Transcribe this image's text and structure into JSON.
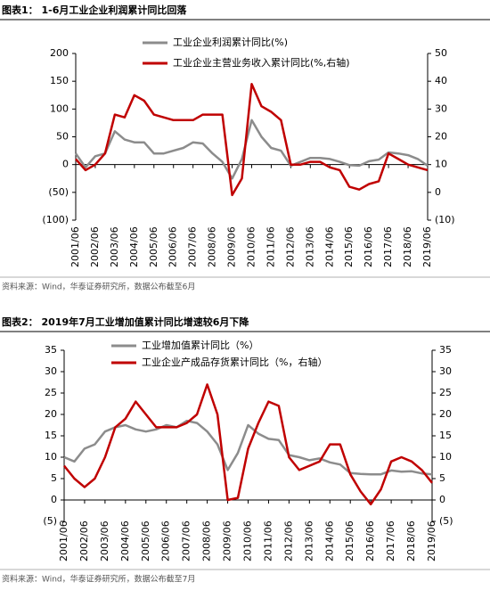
{
  "chart_data": [
    {
      "type": "line",
      "title": "图表1：  1-6月工业企业利润累计同比回落",
      "source": "资料来源：Wind，华泰证券研究所，数据公布截至6月",
      "x": [
        "2001/06",
        "2001/12",
        "2002/06",
        "2002/12",
        "2003/06",
        "2003/12",
        "2004/06",
        "2004/12",
        "2005/06",
        "2005/12",
        "2006/06",
        "2006/12",
        "2007/06",
        "2007/12",
        "2008/06",
        "2008/12",
        "2009/06",
        "2009/12",
        "2010/06",
        "2010/12",
        "2011/06",
        "2011/12",
        "2012/06",
        "2012/12",
        "2013/06",
        "2013/12",
        "2014/06",
        "2014/12",
        "2015/06",
        "2015/12",
        "2016/06",
        "2016/12",
        "2017/06",
        "2017/12",
        "2018/06",
        "2018/12",
        "2019/06"
      ],
      "xticks": [
        "2001/06",
        "2002/06",
        "2003/06",
        "2004/06",
        "2005/06",
        "2006/06",
        "2007/06",
        "2008/06",
        "2009/06",
        "2010/06",
        "2011/06",
        "2012/06",
        "2013/06",
        "2014/06",
        "2015/06",
        "2016/06",
        "2017/06",
        "2018/06",
        "2019/06"
      ],
      "ylim": [
        -100,
        200
      ],
      "yticks": [
        200,
        150,
        100,
        50,
        0,
        {
          "value": -50,
          "label": "(50)"
        },
        {
          "value": -100,
          "label": "(100)"
        }
      ],
      "y2lim": [
        -10,
        50
      ],
      "y2ticks": [
        50,
        40,
        30,
        20,
        10,
        0,
        {
          "value": -10,
          "label": "(10)"
        }
      ],
      "series": [
        {
          "name": "工业企业利润累计同比(%)",
          "color": "#8c8c8c",
          "values": [
            20,
            -5,
            15,
            20,
            60,
            45,
            40,
            40,
            20,
            20,
            25,
            30,
            40,
            38,
            20,
            5,
            -25,
            10,
            80,
            50,
            30,
            25,
            -2,
            5,
            12,
            12,
            10,
            5,
            -1,
            -2,
            6,
            9,
            22,
            20,
            17,
            10,
            -2
          ]
        },
        {
          "name": "工业企业主营业务收入累计同比(%,右轴)",
          "color": "#c00000",
          "axis": "y2",
          "values": [
            12,
            8,
            10,
            14,
            28,
            27,
            35,
            33,
            28,
            27,
            26,
            26,
            26,
            28,
            28,
            28,
            -1,
            5,
            39,
            31,
            29,
            26,
            10,
            10,
            11,
            11,
            9,
            8,
            2,
            1,
            3,
            4,
            14,
            12,
            10,
            9,
            8
          ]
        }
      ]
    },
    {
      "type": "line",
      "title": "图表2：  2019年7月工业增加值累计同比增速较6月下降",
      "source": "资料来源：Wind，华泰证券研究所，数据公布截至7月",
      "x": [
        "2001/06",
        "2001/12",
        "2002/06",
        "2002/12",
        "2003/06",
        "2003/12",
        "2004/06",
        "2004/12",
        "2005/06",
        "2005/12",
        "2006/06",
        "2006/12",
        "2007/06",
        "2007/12",
        "2008/06",
        "2008/12",
        "2009/06",
        "2009/12",
        "2010/06",
        "2010/12",
        "2011/06",
        "2011/12",
        "2012/06",
        "2012/12",
        "2013/06",
        "2013/12",
        "2014/06",
        "2014/12",
        "2015/06",
        "2015/12",
        "2016/06",
        "2016/12",
        "2017/06",
        "2017/12",
        "2018/06",
        "2018/12",
        "2019/06"
      ],
      "xticks": [
        "2001/06",
        "2002/06",
        "2003/06",
        "2004/06",
        "2005/06",
        "2006/06",
        "2007/06",
        "2008/06",
        "2009/06",
        "2010/06",
        "2011/06",
        "2012/06",
        "2013/06",
        "2014/06",
        "2015/06",
        "2016/06",
        "2017/06",
        "2018/06",
        "2019/06"
      ],
      "ylim": [
        -5,
        35
      ],
      "yticks": [
        35,
        30,
        25,
        20,
        15,
        10,
        5,
        0,
        {
          "value": -5,
          "label": "(5)"
        }
      ],
      "y2lim": [
        -5,
        35
      ],
      "y2ticks": [
        35,
        30,
        25,
        20,
        15,
        10,
        5,
        0,
        {
          "value": -5,
          "label": "(5)"
        }
      ],
      "series": [
        {
          "name": "工业增加值累计同比（%）",
          "color": "#8c8c8c",
          "values": [
            10,
            9,
            12,
            13,
            16,
            17,
            17.5,
            16.5,
            16,
            16.5,
            17.5,
            17,
            18.5,
            18,
            16,
            13,
            7,
            11,
            17.5,
            15.5,
            14.3,
            14,
            10.5,
            10,
            9.3,
            9.7,
            8.8,
            8.3,
            6.3,
            6.1,
            6,
            6,
            6.9,
            6.6,
            6.7,
            6.2,
            6
          ]
        },
        {
          "name": "工业企业产成品存货累计同比（%，右轴）",
          "color": "#c00000",
          "axis": "y2",
          "values": [
            8,
            5,
            3,
            5,
            10,
            17,
            19,
            23,
            20,
            17,
            17,
            17,
            18,
            20,
            27,
            20,
            0,
            0.5,
            12,
            18,
            23,
            22,
            10,
            7,
            8,
            9,
            13,
            13,
            6,
            2,
            -1,
            2.5,
            9,
            10,
            9,
            7,
            4
          ]
        }
      ]
    }
  ]
}
